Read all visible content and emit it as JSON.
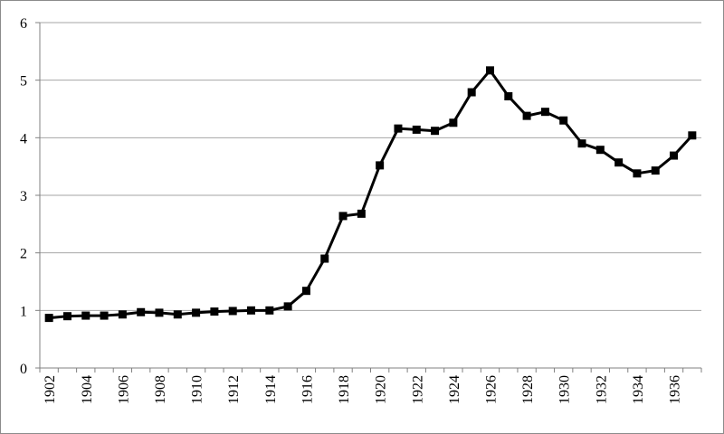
{
  "chart_data": {
    "type": "line",
    "title": "",
    "xlabel": "",
    "ylabel": "",
    "ylim": [
      0,
      6
    ],
    "y_ticks": [
      0,
      1,
      2,
      3,
      4,
      5,
      6
    ],
    "x_tick_labels": [
      "1902",
      "1904",
      "1906",
      "1908",
      "1910",
      "1912",
      "1914",
      "1916",
      "1918",
      "1920",
      "1922",
      "1924",
      "1926",
      "1928",
      "1930",
      "1932",
      "1934",
      "1936"
    ],
    "grid": true,
    "legend": "none",
    "series": [
      {
        "x": [
          1902,
          1903,
          1904,
          1905,
          1906,
          1907,
          1908,
          1909,
          1910,
          1911,
          1912,
          1913,
          1914,
          1915,
          1916,
          1917,
          1918,
          1919,
          1920,
          1921,
          1922,
          1923,
          1924,
          1925,
          1926,
          1927,
          1928,
          1929,
          1930,
          1931,
          1932,
          1933,
          1934,
          1935,
          1936,
          1937
        ],
        "values": [
          0.87,
          0.9,
          0.91,
          0.91,
          0.93,
          0.97,
          0.96,
          0.93,
          0.96,
          0.98,
          0.99,
          1.0,
          1.0,
          1.07,
          1.34,
          1.9,
          2.64,
          2.68,
          3.52,
          4.16,
          4.14,
          4.12,
          4.26,
          4.79,
          5.17,
          4.72,
          4.38,
          4.45,
          4.3,
          3.9,
          3.79,
          3.57,
          3.38,
          3.43,
          3.69,
          4.04
        ],
        "color": "#000000",
        "marker": "square"
      }
    ]
  }
}
